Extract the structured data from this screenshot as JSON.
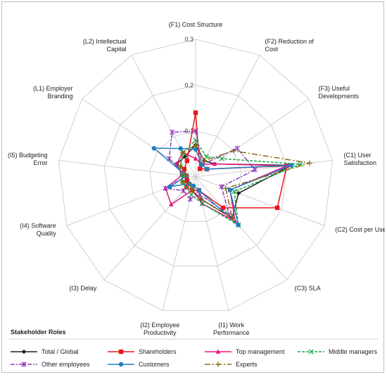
{
  "chart_data": {
    "type": "radar",
    "axes": [
      [
        "(F1) Cost Structure"
      ],
      [
        "(F2) Reduction of",
        "Cost"
      ],
      [
        "(F3) Useful",
        "Developments"
      ],
      [
        "(C1) User",
        "Satisfaction"
      ],
      [
        "(C2) Cost per Use"
      ],
      [
        "(C3) SLA"
      ],
      [
        "(I1) Work",
        "Performance"
      ],
      [
        "(I2) Employee",
        "Productivity"
      ],
      [
        "(I3) Delay"
      ],
      [
        "(I4) Software",
        "Quality"
      ],
      [
        "(I5) Budgeting",
        "Error"
      ],
      [
        "(L1) Employer",
        "Branding"
      ],
      [
        "(L2) Intellectual",
        "Capital"
      ]
    ],
    "rmax": 0.3,
    "ticks": [
      {
        "value": 0.1,
        "label": "0,1"
      },
      {
        "value": 0.2,
        "label": "0,2"
      },
      {
        "value": 0.3,
        "label": "0,3"
      }
    ],
    "legend_title": "Stakeholder Roles",
    "series": [
      {
        "name": "Total / Global",
        "color": "#1f1f1f",
        "dash": "",
        "marker": "diamond",
        "values": [
          0.07,
          0.04,
          0.05,
          0.21,
          0.1,
          0.12,
          0.05,
          0.03,
          0.02,
          0.03,
          0.03,
          0.05,
          0.05
        ]
      },
      {
        "name": "Shareholders",
        "color": "#e8141c",
        "dash": "",
        "marker": "square",
        "values": [
          0.14,
          0.02,
          0.03,
          0.2,
          0.19,
          0.09,
          0.03,
          0.03,
          0.03,
          0.02,
          0.02,
          0.03,
          0.04
        ]
      },
      {
        "name": "Top management",
        "color": "#e5157a",
        "dash": "",
        "marker": "triangle",
        "values": [
          0.04,
          0.03,
          0.05,
          0.2,
          0.08,
          0.13,
          0.06,
          0.03,
          0.08,
          0.07,
          0.03,
          0.05,
          0.06
        ]
      },
      {
        "name": "Middle managers",
        "color": "#1aa84a",
        "dash": "4,2",
        "marker": "x",
        "values": [
          0.08,
          0.05,
          0.07,
          0.23,
          0.09,
          0.14,
          0.06,
          0.04,
          0.03,
          0.03,
          0.03,
          0.04,
          0.06
        ]
      },
      {
        "name": "Other employees",
        "color": "#8e3bb5",
        "dash": "6,2,2,2",
        "marker": "star",
        "values": [
          0.1,
          0.03,
          0.11,
          0.13,
          0.06,
          0.11,
          0.04,
          0.05,
          0.04,
          0.07,
          0.02,
          0.07,
          0.11
        ]
      },
      {
        "name": "Customers",
        "color": "#1f7fbf",
        "dash": "",
        "marker": "circle",
        "values": [
          0.06,
          0.03,
          0.03,
          0.21,
          0.08,
          0.14,
          0.03,
          0.02,
          0.02,
          0.06,
          0.02,
          0.11,
          0.07
        ]
      },
      {
        "name": "Experts",
        "color": "#8a6a14",
        "dash": "8,3,2,3",
        "marker": "plus",
        "values": [
          0.07,
          0.04,
          0.1,
          0.25,
          0.07,
          0.12,
          0.05,
          0.03,
          0.02,
          0.03,
          0.02,
          0.04,
          0.06
        ]
      }
    ]
  }
}
